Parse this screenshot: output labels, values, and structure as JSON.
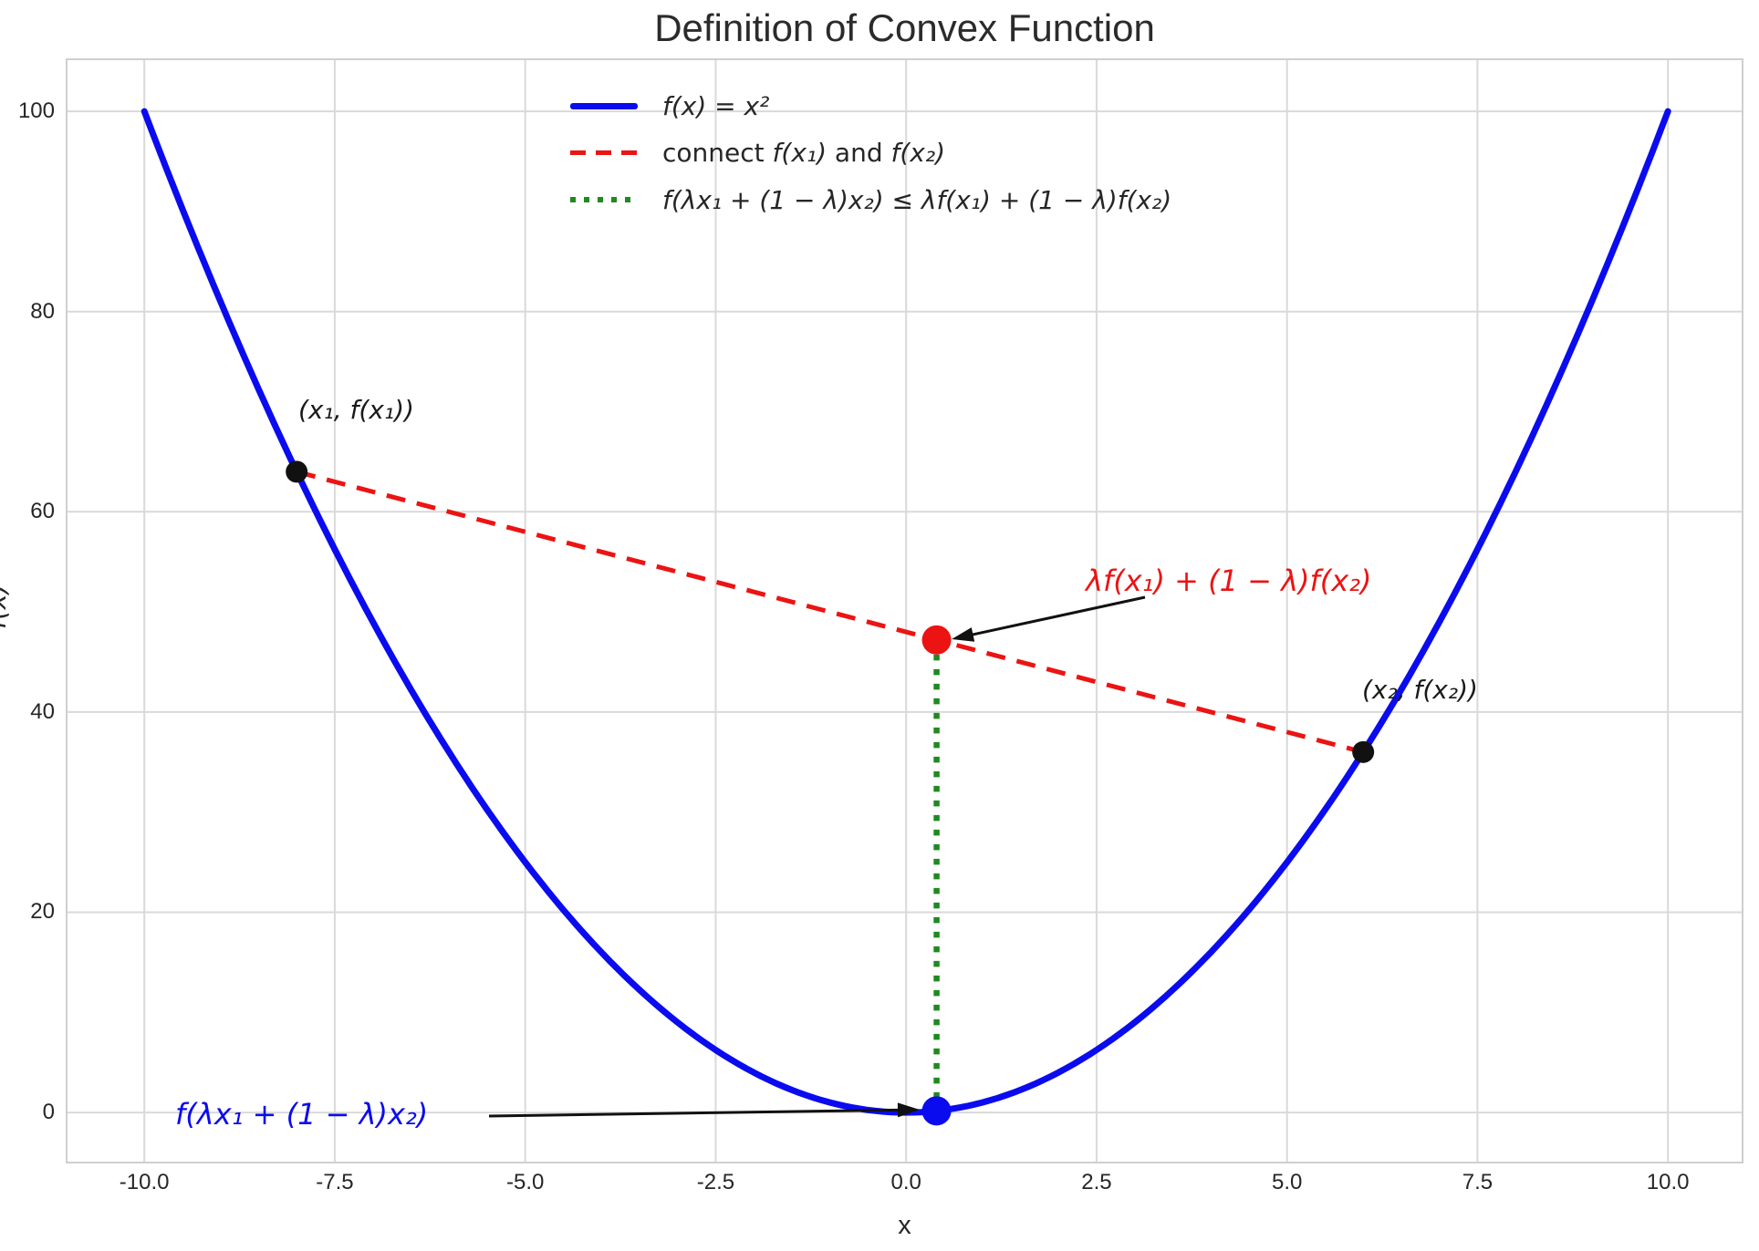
{
  "title": "Definition of Convex Function",
  "axes": {
    "xlabel": "x",
    "ylabel": "f(x)",
    "xtick_labels": [
      "-10.0",
      "-7.5",
      "-5.0",
      "-2.5",
      "0.0",
      "2.5",
      "5.0",
      "7.5",
      "10.0"
    ],
    "ytick_labels": [
      "0",
      "20",
      "40",
      "60",
      "80",
      "100"
    ]
  },
  "legend": {
    "items": [
      {
        "label": "f(x) = x²",
        "color": "#0b0bf0",
        "line_style": "solid"
      },
      {
        "parts": [
          "connect ",
          "f(x₁)",
          " and ",
          "f(x₂)"
        ],
        "color": "#ec1313",
        "line_style": "dashed"
      },
      {
        "label": "f(λx₁ + (1 − λ)x₂) ≤ λf(x₁) + (1 − λ)f(x₂)",
        "color": "#1f8a1f",
        "line_style": "dotted"
      }
    ]
  },
  "labels": {
    "p1": "(x₁, f(x₁))",
    "p2": "(x₂, f(x₂))",
    "chord_annotation": "λf(x₁) + (1 − λ)f(x₂)",
    "curve_annotation": "f(λx₁ + (1 − λ)x₂)"
  },
  "colors": {
    "curve": "#0b0bf0",
    "chord": "#ec1313",
    "interp": "#1f8a1f",
    "points": "#111111",
    "arrow": "#111111",
    "grid": "#d9d9d9",
    "border": "#cfcfcf",
    "text": "#262626"
  },
  "chart_data": {
    "type": "line",
    "title": "Definition of Convex Function",
    "xlabel": "x",
    "ylabel": "f(x)",
    "function": "f(x) = x^2",
    "x_range": [
      -10,
      10
    ],
    "xlim": [
      -11.02,
      10.98
    ],
    "ylim": [
      -5.0,
      105.2
    ],
    "xticks": [
      -10,
      -7.5,
      -5,
      -2.5,
      0,
      2.5,
      5,
      7.5,
      10
    ],
    "yticks": [
      0,
      20,
      40,
      60,
      80,
      100
    ],
    "grid": true,
    "legend_position": "upper center",
    "lambda": 0.4,
    "series": [
      {
        "name": "f(x) = x²",
        "style": "solid",
        "color": "#0b0bf0",
        "fn": "x^2"
      },
      {
        "name": "connect f(x₁) and f(x₂)",
        "style": "dashed",
        "color": "#ec1313",
        "points": [
          [
            -8,
            64
          ],
          [
            6,
            36
          ]
        ]
      },
      {
        "name": "f(λx₁ + (1 − λ)x₂) ≤ λf(x₁) + (1 − λ)f(x₂)",
        "style": "dotted",
        "color": "#1f8a1f",
        "points": [
          [
            0.4,
            47.2
          ],
          [
            0.4,
            0.16
          ]
        ]
      }
    ],
    "scatter": [
      {
        "x": -8,
        "y": 64,
        "r": 12,
        "color": "#111111",
        "label": "(x₁, f(x₁))"
      },
      {
        "x": 6,
        "y": 36,
        "r": 12,
        "color": "#111111",
        "label": "(x₂, f(x₂))"
      },
      {
        "x": 0.4,
        "y": 47.2,
        "r": 16,
        "color": "#ec1313",
        "label": "λf(x₁) + (1 − λ)f(x₂)"
      },
      {
        "x": 0.4,
        "y": 0.16,
        "r": 16,
        "color": "#0b0bf0",
        "label": "f(λx₁ + (1 − λ)x₂)"
      }
    ]
  }
}
